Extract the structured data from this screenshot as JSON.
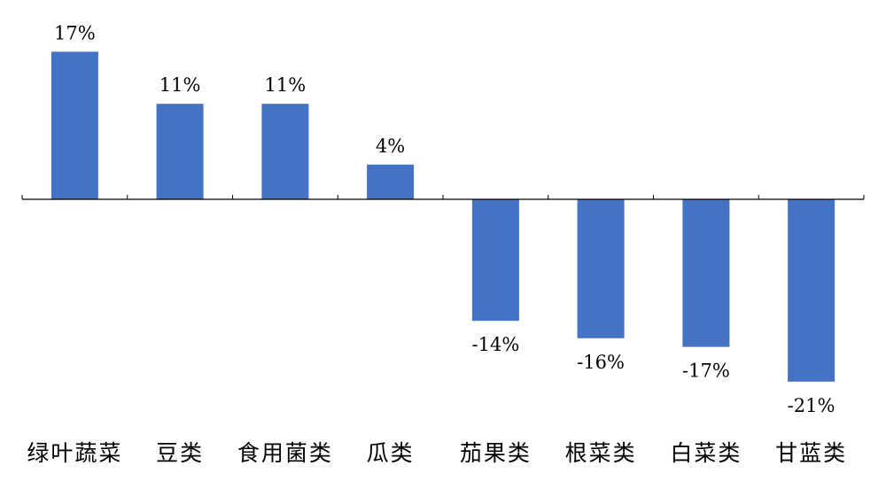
{
  "chart_data": {
    "type": "bar",
    "categories": [
      "绿叶蔬菜",
      "豆类",
      "食用菌类",
      "瓜类",
      "茄果类",
      "根菜类",
      "白菜类",
      "甘蓝类"
    ],
    "values": [
      17,
      11,
      11,
      4,
      -14,
      -16,
      -17,
      -21
    ],
    "value_labels": [
      "17%",
      "11%",
      "11%",
      "4%",
      "-14%",
      "-16%",
      "-17%",
      "-21%"
    ],
    "ylim": [
      -21,
      17
    ],
    "grid": false,
    "legend": "none",
    "colors": {
      "bar": "#4472C4"
    }
  }
}
